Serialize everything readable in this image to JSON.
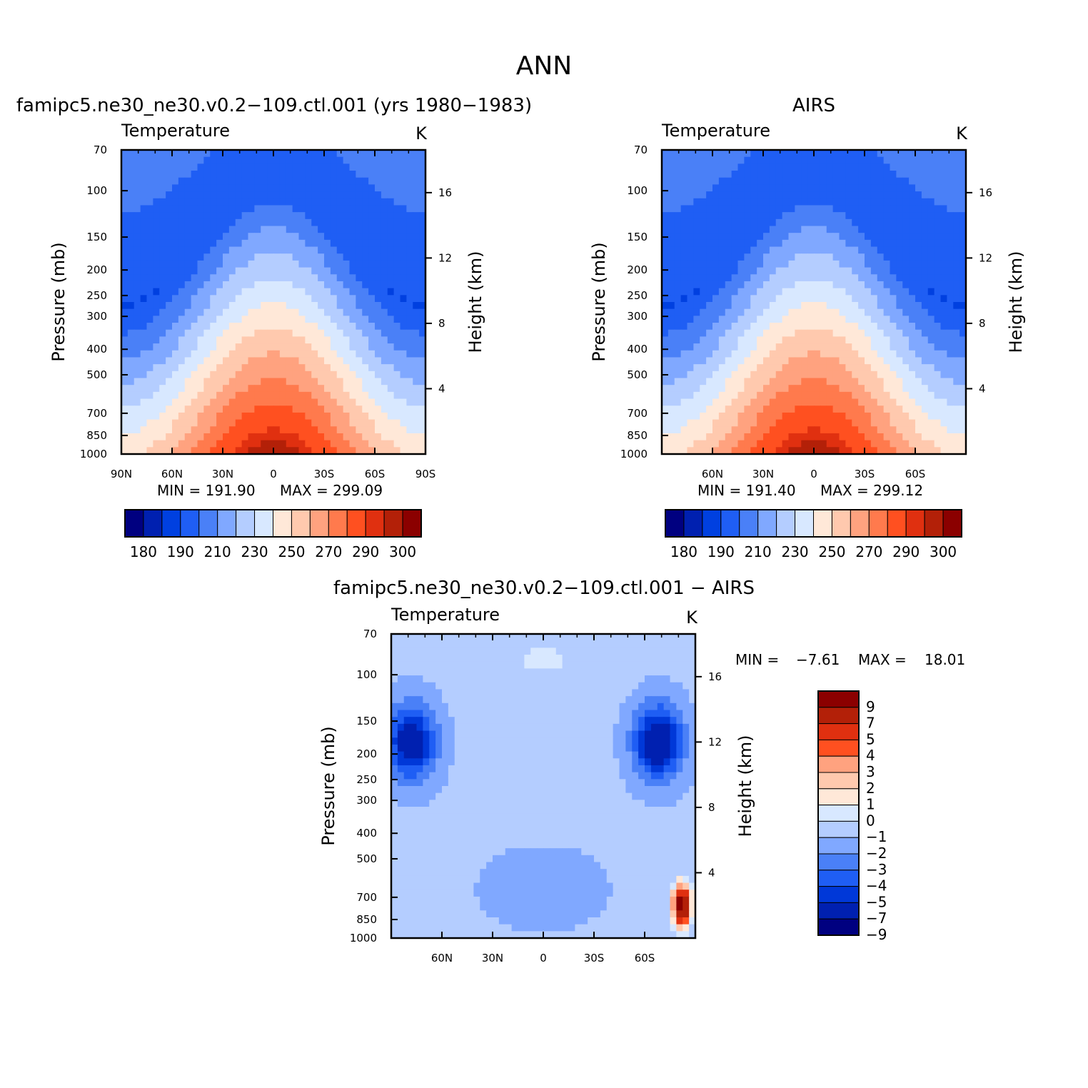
{
  "title": "ANN",
  "colors": {
    "temperature_scale": [
      "#000080",
      "#0020b0",
      "#0040e0",
      "#1f5ef4",
      "#4a80f7",
      "#80a8ff",
      "#b4cdff",
      "#d8e8ff",
      "#ffe8d8",
      "#ffc9ae",
      "#ffa27f",
      "#ff7a4d",
      "#ff5020",
      "#e03010",
      "#b32008",
      "#8b0000"
    ],
    "difference_scale": [
      "#000080",
      "#0020b0",
      "#0038d8",
      "#1f5ef4",
      "#4a80f7",
      "#80a8ff",
      "#b4cdff",
      "#d8e8ff",
      "#ffe8d8",
      "#ffc9ae",
      "#ffa27f",
      "#ff5020",
      "#e03010",
      "#b32008",
      "#8b0000"
    ]
  },
  "chart_data": [
    {
      "type": "heatmap",
      "title": "famipc5.ne30_ne30.v0.2−109.ctl.001 (yrs 1980−1983)",
      "subtitle": "Temperature",
      "units": "K",
      "xlabel": "",
      "ylabel": "Pressure (mb)",
      "y2label": "Height (km)",
      "x_ticks": [
        "90N",
        "60N",
        "30N",
        "0",
        "30S",
        "60S",
        "90S"
      ],
      "y_ticks": [
        "70",
        "100",
        "150",
        "200",
        "250",
        "300",
        "400",
        "500",
        "700",
        "850",
        "1000"
      ],
      "y2_ticks": [
        "4",
        "8",
        "12",
        "16"
      ],
      "ylim": [
        1000,
        70
      ],
      "min_label": "MIN = 191.90",
      "max_label": "MAX = 299.09",
      "min": 191.9,
      "max": 299.09,
      "colorbar_labels": [
        "180",
        "190",
        "210",
        "230",
        "250",
        "270",
        "290",
        "300"
      ]
    },
    {
      "type": "heatmap",
      "title": "AIRS",
      "subtitle": "Temperature",
      "units": "K",
      "xlabel": "",
      "ylabel": "Pressure (mb)",
      "y2label": "Height (km)",
      "x_ticks": [
        "60N",
        "30N",
        "0",
        "30S",
        "60S"
      ],
      "y_ticks": [
        "70",
        "100",
        "150",
        "200",
        "250",
        "300",
        "400",
        "500",
        "700",
        "850",
        "1000"
      ],
      "y2_ticks": [
        "4",
        "8",
        "12",
        "16"
      ],
      "ylim": [
        1000,
        70
      ],
      "min_label": "MIN = 191.40",
      "max_label": "MAX = 299.12",
      "min": 191.4,
      "max": 299.12,
      "colorbar_labels": [
        "180",
        "190",
        "210",
        "230",
        "250",
        "270",
        "290",
        "300"
      ]
    },
    {
      "type": "heatmap",
      "title": "famipc5.ne30_ne30.v0.2−109.ctl.001 − AIRS",
      "subtitle": "Temperature",
      "units": "K",
      "xlabel": "",
      "ylabel": "Pressure (mb)",
      "y2label": "Height (km)",
      "x_ticks": [
        "60N",
        "30N",
        "0",
        "30S",
        "60S"
      ],
      "y_ticks": [
        "70",
        "100",
        "150",
        "200",
        "250",
        "300",
        "400",
        "500",
        "700",
        "850",
        "1000"
      ],
      "y2_ticks": [
        "4",
        "8",
        "12",
        "16"
      ],
      "ylim": [
        1000,
        70
      ],
      "min_label": "MIN =",
      "min_value": "−7.61",
      "max_label": "MAX =",
      "max_value": "18.01",
      "min": -7.61,
      "max": 18.01,
      "colorbar_labels": [
        "9",
        "7",
        "5",
        "4",
        "3",
        "2",
        "1",
        "0",
        "−1",
        "−2",
        "−3",
        "−4",
        "−5",
        "−7",
        "−9"
      ]
    }
  ]
}
